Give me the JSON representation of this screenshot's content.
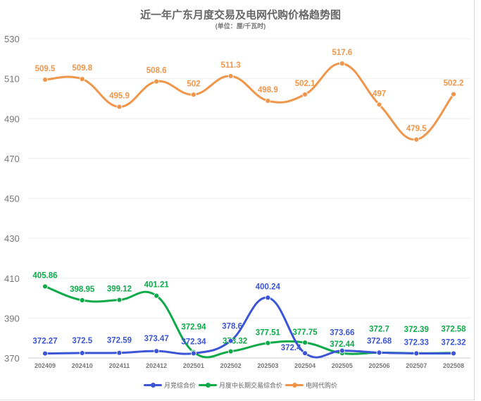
{
  "chart_data": {
    "type": "line",
    "title": "近一年广东月度交易及电网代购价格趋势图",
    "subtitle": "(单位：厘/千瓦时)",
    "categories": [
      "202409",
      "202410",
      "202411",
      "202412",
      "202501",
      "202502",
      "202503",
      "202504",
      "202505",
      "202506",
      "202507",
      "202508"
    ],
    "yticks": [
      370,
      390,
      410,
      430,
      450,
      470,
      490,
      510,
      530
    ],
    "ylim": [
      370,
      530
    ],
    "grid": true,
    "legend_position": "bottom",
    "series": [
      {
        "name": "月竞综合价",
        "color": "#3b55d6",
        "values": [
          372.27,
          372.5,
          372.59,
          373.47,
          372.34,
          378.6,
          400.24,
          372.4,
          373.66,
          372.68,
          372.33,
          372.32
        ]
      },
      {
        "name": "月度中长期交易综合价",
        "color": "#0eaa4a",
        "values": [
          405.86,
          398.95,
          399.12,
          401.21,
          372.94,
          373.32,
          377.51,
          377.75,
          372.44,
          372.7,
          372.39,
          372.58
        ]
      },
      {
        "name": "电网代购价",
        "color": "#f0964a",
        "values": [
          509.5,
          509.8,
          495.9,
          508.6,
          502,
          511.3,
          498.9,
          502.1,
          517.6,
          497,
          479.5,
          502.2
        ]
      }
    ]
  }
}
